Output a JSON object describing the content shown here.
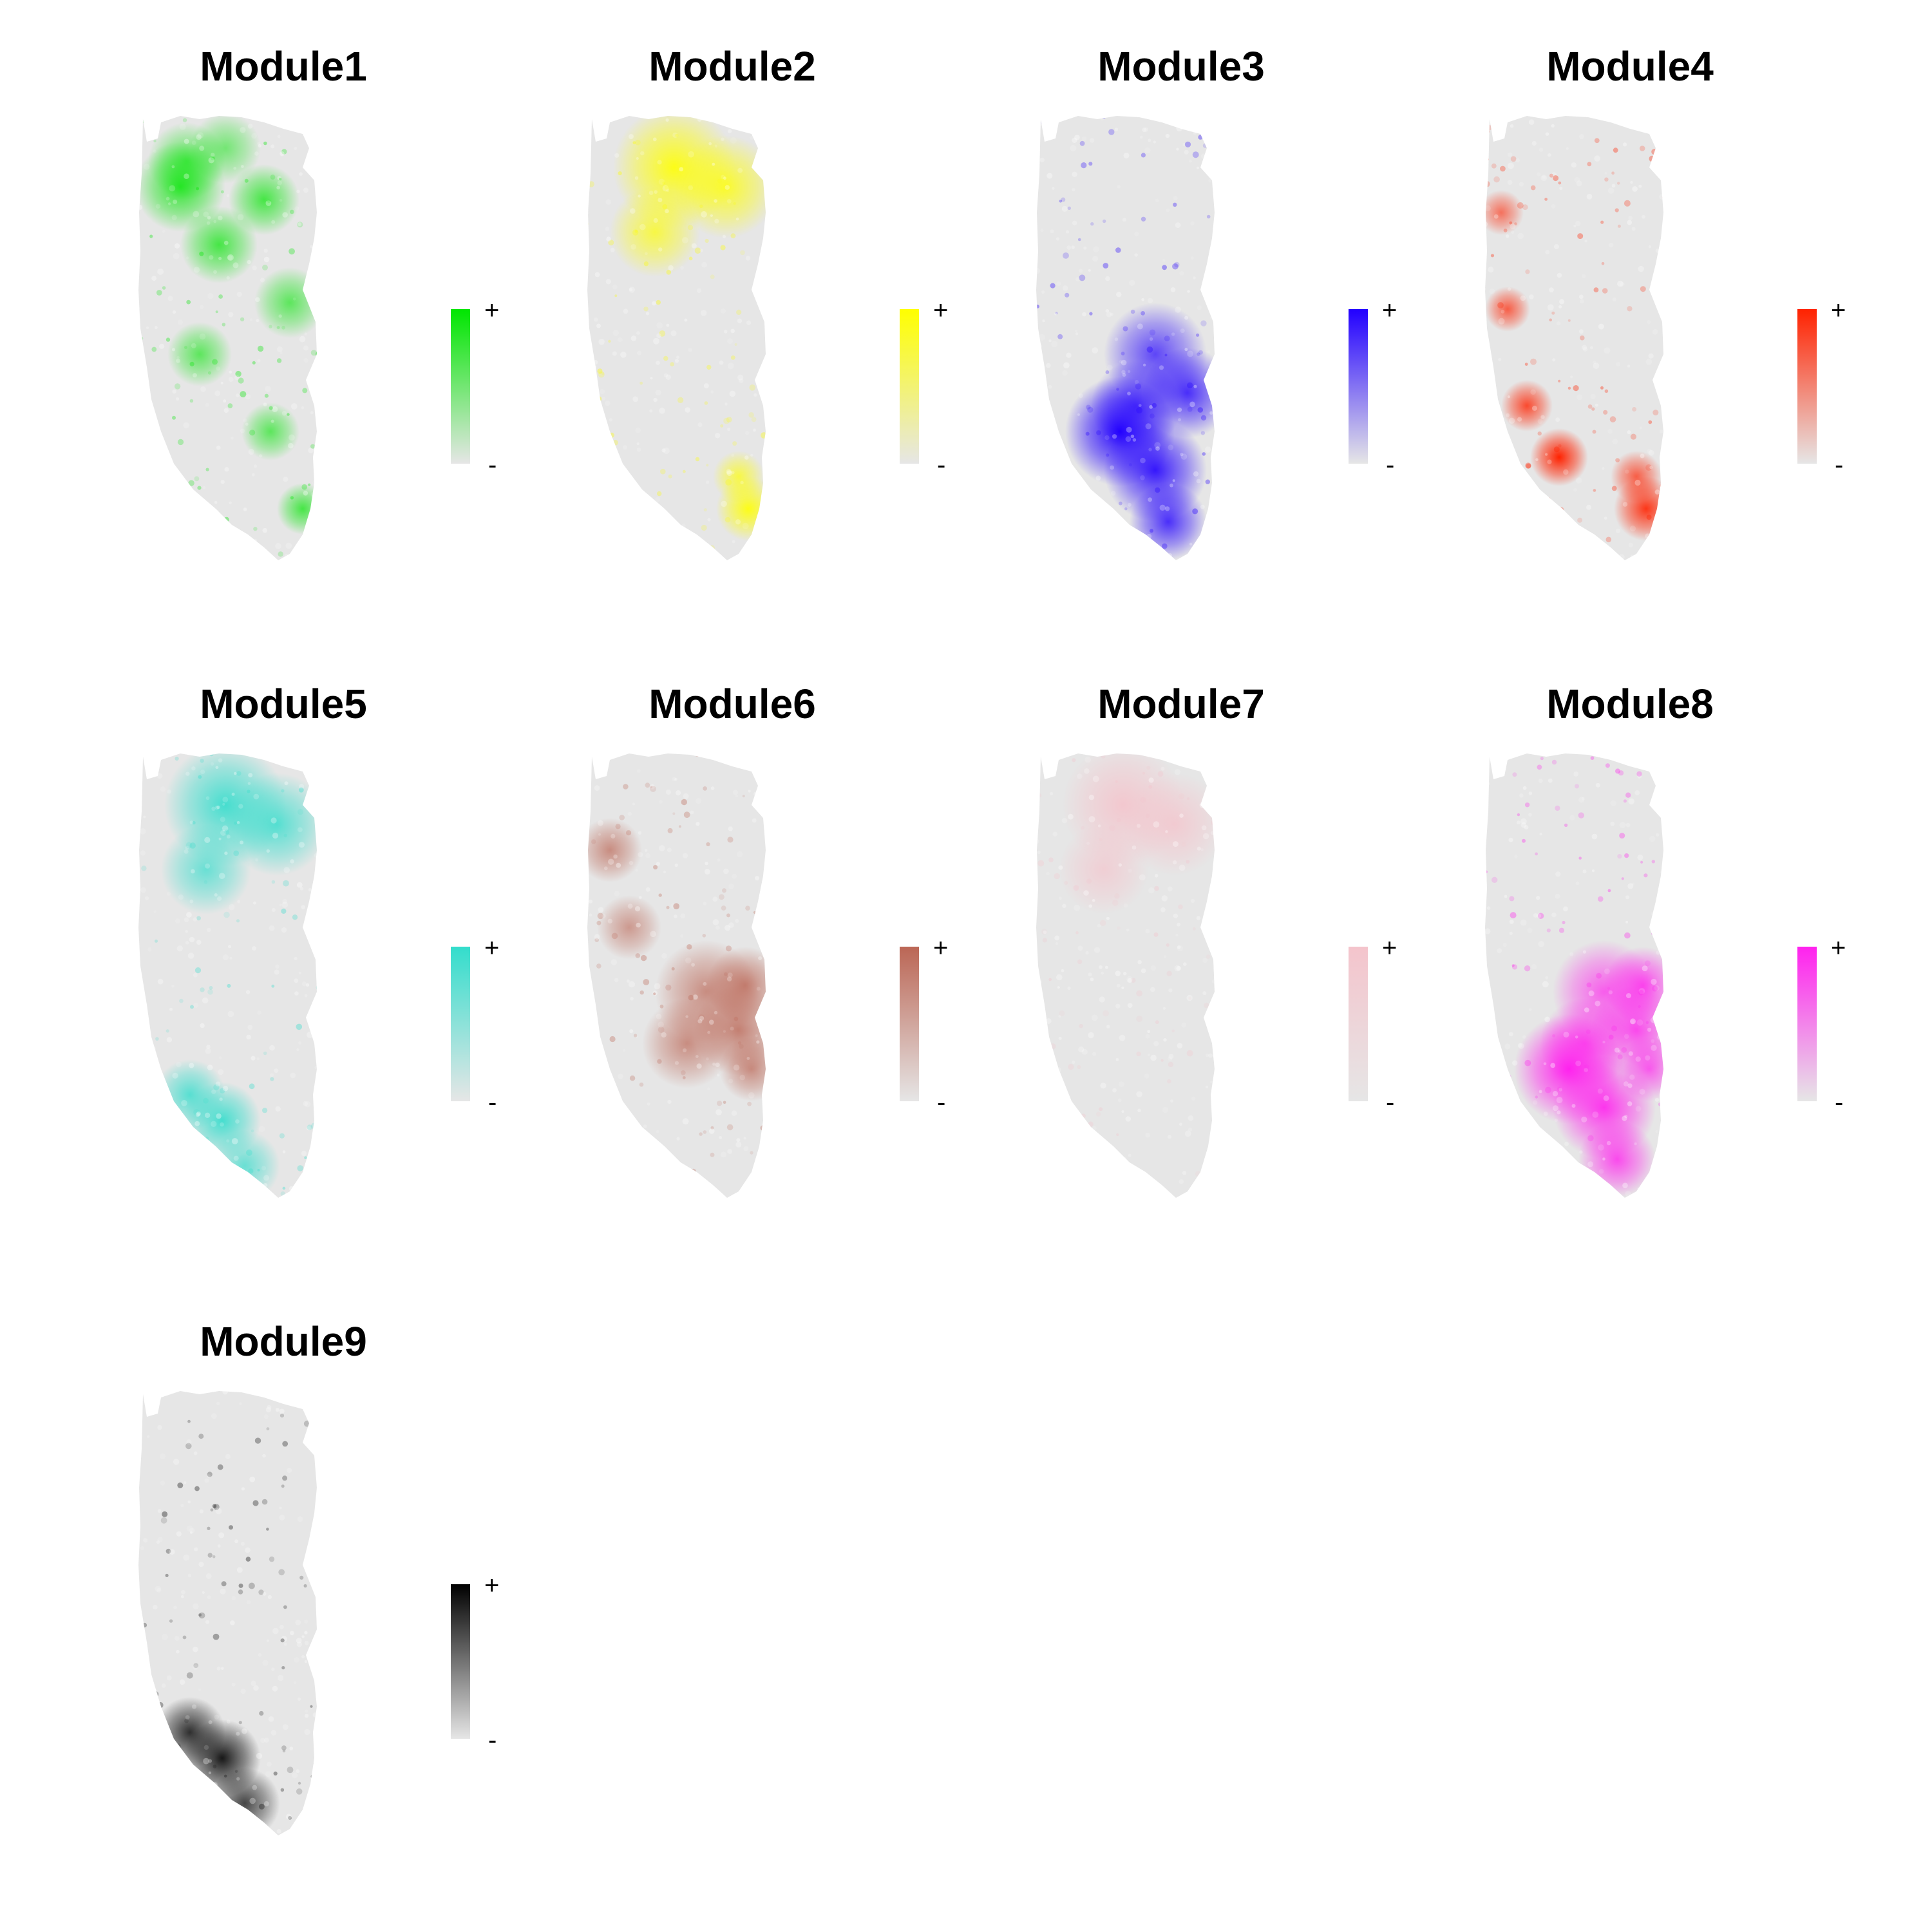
{
  "figure": {
    "background": "#ffffff",
    "base_color": "#e6e6e6",
    "legend_plus": "+",
    "legend_minus": "-"
  },
  "modules": [
    {
      "title": "Module1",
      "color": "#00e600",
      "legend_high": "+",
      "legend_low": "-",
      "hotspot_regions": [
        "cluster-boundaries",
        "upper-left"
      ]
    },
    {
      "title": "Module2",
      "color": "#ffff00",
      "legend_high": "+",
      "legend_low": "-",
      "hotspot_regions": [
        "upper-center",
        "bottom-right"
      ]
    },
    {
      "title": "Module3",
      "color": "#2200ff",
      "legend_high": "+",
      "legend_low": "-",
      "hotspot_regions": [
        "lower-center",
        "center"
      ]
    },
    {
      "title": "Module4",
      "color": "#ff2200",
      "legend_high": "+",
      "legend_low": "-",
      "hotspot_regions": [
        "left-edge",
        "bottom-right"
      ]
    },
    {
      "title": "Module5",
      "color": "#33ddcc",
      "legend_high": "+",
      "legend_low": "-",
      "hotspot_regions": [
        "upper-center",
        "lower-left"
      ]
    },
    {
      "title": "Module6",
      "color": "#bb6655",
      "legend_high": "+",
      "legend_low": "-",
      "hotspot_regions": [
        "left",
        "center",
        "right"
      ]
    },
    {
      "title": "Module7",
      "color": "#f4c4cc",
      "legend_high": "+",
      "legend_low": "-",
      "hotspot_regions": [
        "upper-center"
      ]
    },
    {
      "title": "Module8",
      "color": "#ff22ee",
      "legend_high": "+",
      "legend_low": "-",
      "hotspot_regions": [
        "center",
        "right",
        "lower-center"
      ]
    },
    {
      "title": "Module9",
      "color": "#000000",
      "legend_high": "+",
      "legend_low": "-",
      "hotspot_regions": [
        "lower-left"
      ]
    }
  ]
}
